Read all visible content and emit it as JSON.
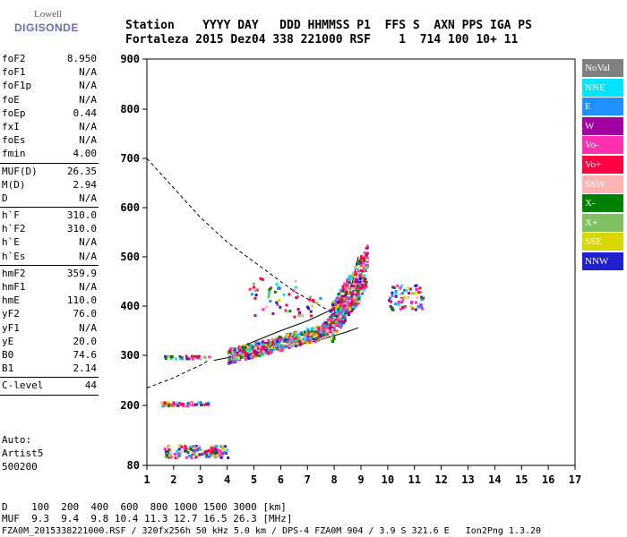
{
  "logo": {
    "top": "Lowell",
    "bottom": "DIGISONDE"
  },
  "header": {
    "line1": "Station    YYYY DAY   DDD HHMMSS P1  FFS S  AXN PPS IGA PS",
    "line2": "Fortaleza 2015 Dez04 338 221000 RSF    1  714 100 10+ 11"
  },
  "params": [
    {
      "k": "foF2",
      "v": "8.950"
    },
    {
      "k": "foF1",
      "v": "N/A"
    },
    {
      "k": "foF1p",
      "v": "N/A"
    },
    {
      "k": "foE",
      "v": "N/A"
    },
    {
      "k": "foEp",
      "v": "0.44"
    },
    {
      "k": "fxI",
      "v": "N/A"
    },
    {
      "k": "foEs",
      "v": "N/A"
    },
    {
      "k": "fmin",
      "v": "4.00"
    },
    {
      "sep": true
    },
    {
      "k": "MUF(D)",
      "v": "26.35"
    },
    {
      "k": "M(D)",
      "v": "2.94"
    },
    {
      "k": "D",
      "v": "N/A"
    },
    {
      "sep": true
    },
    {
      "k": "h`F",
      "v": "310.0"
    },
    {
      "k": "h`F2",
      "v": "310.0"
    },
    {
      "k": "h`E",
      "v": "N/A"
    },
    {
      "k": "h`Es",
      "v": "N/A"
    },
    {
      "sep": true
    },
    {
      "k": "hmF2",
      "v": "359.9"
    },
    {
      "k": "hmF1",
      "v": "N/A"
    },
    {
      "k": "hmE",
      "v": "110.0"
    },
    {
      "k": "yF2",
      "v": "76.0"
    },
    {
      "k": "yF1",
      "v": "N/A"
    },
    {
      "k": "yE",
      "v": "20.0"
    },
    {
      "k": "B0",
      "v": "74.6"
    },
    {
      "k": "B1",
      "v": "2.14"
    },
    {
      "sep": true
    },
    {
      "k": "C-level",
      "v": "44"
    },
    {
      "sep": true
    }
  ],
  "auto": {
    "l1": "Auto:",
    "l2": "Artist5",
    "l3": "500200"
  },
  "legend": [
    {
      "label": "NoVal",
      "color": "#808080"
    },
    {
      "label": "NNE",
      "color": "#00e5ff"
    },
    {
      "label": "E",
      "color": "#1e90ff"
    },
    {
      "label": "W",
      "color": "#a000a0"
    },
    {
      "label": "Vo-",
      "color": "#ff30b0"
    },
    {
      "label": "Vo+",
      "color": "#ff0040"
    },
    {
      "label": "SSW",
      "color": "#ffb4b4"
    },
    {
      "label": "X-",
      "color": "#008000"
    },
    {
      "label": "X+",
      "color": "#80c060"
    },
    {
      "label": "SSE",
      "color": "#d8d800"
    },
    {
      "label": "NNW",
      "color": "#2020d0"
    }
  ],
  "chart_data": {
    "type": "scatter",
    "xlim": [
      1,
      17
    ],
    "ylim": [
      80,
      900
    ],
    "xticks": [
      "1",
      "2",
      "3",
      "4",
      "5",
      "6",
      "7",
      "8",
      "9",
      "10",
      "11",
      "12",
      "13",
      "14",
      "15",
      "16",
      "17"
    ],
    "yticks": [
      "900",
      "800",
      "700",
      "600",
      "500",
      "400",
      "300",
      "200",
      "80"
    ],
    "ytick_values": [
      900,
      800,
      700,
      600,
      500,
      400,
      300,
      200,
      80
    ],
    "dashed_muf_curve": {
      "x": [
        1,
        1.5,
        2,
        2.5,
        3,
        3.5,
        4,
        4.5,
        5,
        5.5,
        6,
        6.5,
        7,
        7.5,
        8
      ],
      "y": [
        700,
        670,
        640,
        610,
        580,
        555,
        530,
        510,
        490,
        470,
        450,
        430,
        415,
        400,
        385
      ]
    },
    "lower_dashed": {
      "x": [
        1,
        1.5,
        2,
        2.5,
        3,
        3.3
      ],
      "y": [
        235,
        245,
        255,
        268,
        280,
        290
      ]
    },
    "profile_solid": {
      "x": [
        3.5,
        4,
        4.5,
        5,
        5.5,
        6,
        6.5,
        7,
        7.5,
        8,
        8.5,
        8.9
      ],
      "y": [
        290,
        295,
        300,
        305,
        310,
        315,
        320,
        325,
        332,
        340,
        348,
        356
      ]
    },
    "profile_upper": {
      "x": [
        4,
        5,
        6,
        7,
        8,
        8.6,
        8.9
      ],
      "y": [
        305,
        328,
        350,
        370,
        395,
        430,
        500
      ]
    }
  },
  "bottom": {
    "row1": "D    100  200  400  600  800 1000 1500 3000 [km]",
    "row2": "MUF  9.3  9.4  9.8 10.4 11.3 12.7 16.5 26.3 [MHz]"
  },
  "footer": "FZA0M_2015338221000.RSF / 320fx256h 50 kHz 5.0 km / DPS-4 FZA0M 904 / 3.9 S 321.6 E   Ion2Png 1.3.20"
}
